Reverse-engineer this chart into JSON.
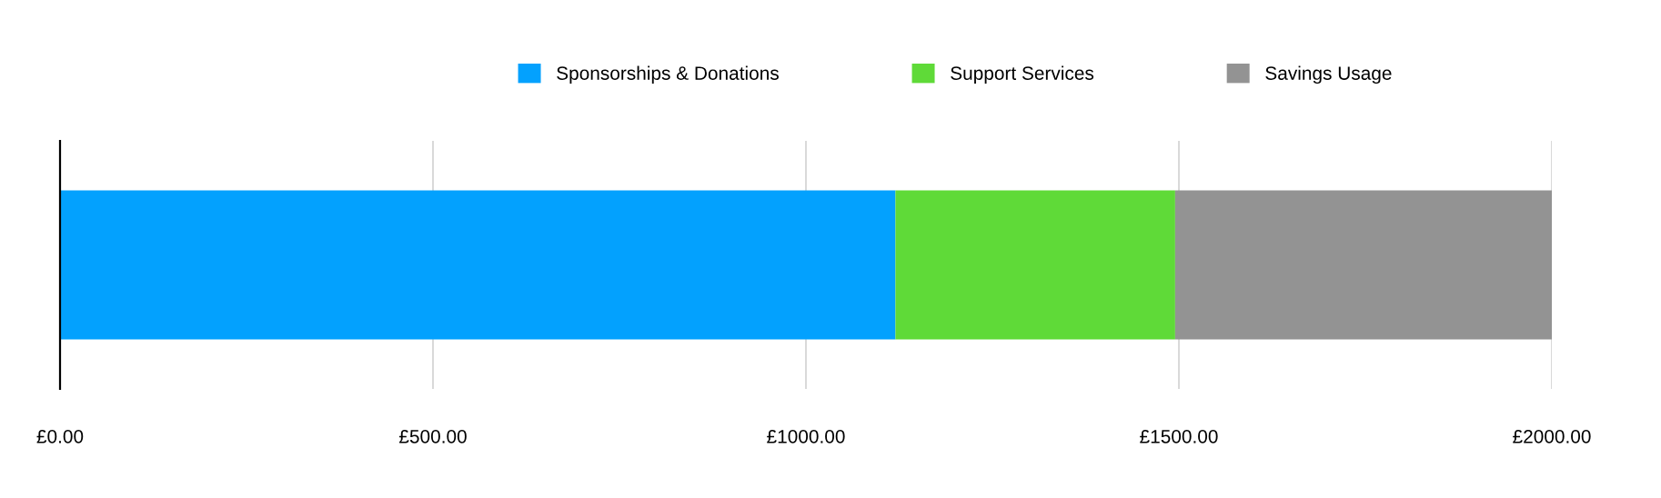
{
  "chart_data": {
    "type": "bar",
    "orientation": "horizontal",
    "stacked": true,
    "categories": [
      null
    ],
    "series": [
      {
        "name": "Sponsorships & Donations",
        "color": "#03a1fe",
        "values": [
          1120
        ]
      },
      {
        "name": "Support Services",
        "color": "#5fda38",
        "values": [
          375
        ]
      },
      {
        "name": "Savings Usage",
        "color": "#939393",
        "values": [
          505
        ]
      }
    ],
    "xlim": [
      0,
      2000
    ],
    "xticks": [
      {
        "value": 0,
        "label": "£0.00"
      },
      {
        "value": 500,
        "label": "£500.00"
      },
      {
        "value": 1000,
        "label": "£1000.00"
      },
      {
        "value": 1500,
        "label": "£1500.00"
      },
      {
        "value": 2000,
        "label": "£2000.00"
      }
    ],
    "grid": "x",
    "legend": "top"
  }
}
